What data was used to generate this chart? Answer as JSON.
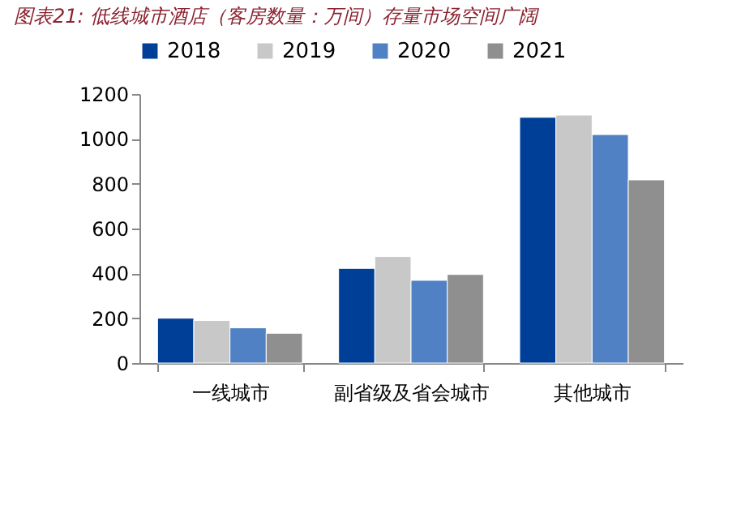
{
  "chart_data": {
    "type": "bar",
    "title": "图表21:  低线城市酒店（客房数量：万间）存量市场空间广阔",
    "categories": [
      "一线城市",
      "副省级及省会城市",
      "其他城市"
    ],
    "series": [
      {
        "name": "2018",
        "color": "#003f98",
        "values": [
          200,
          422,
          1096
        ]
      },
      {
        "name": "2019",
        "color": "#c8c8c8",
        "values": [
          190,
          475,
          1106
        ]
      },
      {
        "name": "2020",
        "color": "#4f81c4",
        "values": [
          157,
          369,
          1019
        ]
      },
      {
        "name": "2021",
        "color": "#8f8f8f",
        "values": [
          133,
          395,
          817
        ]
      }
    ],
    "ylim": [
      0,
      1200
    ],
    "yticks": [
      0,
      200,
      400,
      600,
      800,
      1000,
      1200
    ],
    "grid": false,
    "legend": "top"
  }
}
